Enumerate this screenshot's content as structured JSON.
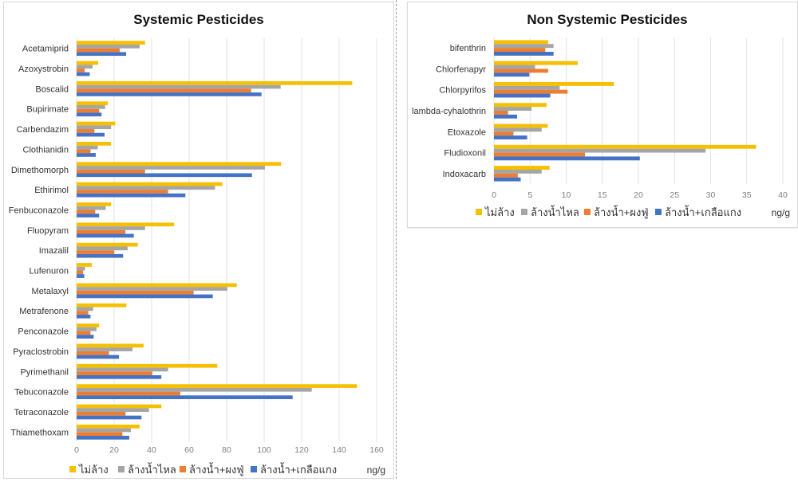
{
  "legend": {
    "series_labels": [
      "ไม่ล้าง",
      "ล้างน้ำไหล",
      "ล้างน้ำ+ผงฟู่",
      "ล้างน้ำ+เกลือแกง"
    ],
    "unit": "ng/g"
  },
  "colors": {
    "series": [
      "#F5C000",
      "#A5A5A5",
      "#ED7D31",
      "#4472C4"
    ],
    "grid": "#e3e3e3"
  },
  "chart_data": [
    {
      "type": "bar",
      "orientation": "horizontal",
      "title": "Systemic Pesticides",
      "xlabel": "ng/g",
      "ylabel": "",
      "xlim": [
        0,
        160
      ],
      "xticks": [
        0,
        20,
        40,
        60,
        80,
        100,
        120,
        140,
        160
      ],
      "grid": true,
      "legend_position": "bottom",
      "categories": [
        "Acetamiprid",
        "Azoxystrobin",
        "Boscalid",
        "Bupirimate",
        "Carbendazim",
        "Clothianidin",
        "Dimethomorph",
        "Ethirimol",
        "Fenbuconazole",
        "Fluopyram",
        "Imazalil",
        "Lufenuron",
        "Metalaxyl",
        "Metrafenone",
        "Penconazole",
        "Pyraclostrobin",
        "Pyrimethanil",
        "Tebuconazole",
        "Tetraconazole",
        "Thiamethoxam"
      ],
      "series": [
        {
          "name": "ไม่ล้าง",
          "values": [
            36.5,
            11.5,
            147,
            16.6,
            20.6,
            18.3,
            109,
            77.7,
            18.4,
            52,
            32.6,
            8.1,
            85.4,
            26.5,
            12,
            35.7,
            75,
            149.5,
            45.2,
            33.6
          ]
        },
        {
          "name": "ล้างน้ำไหล",
          "values": [
            33.6,
            8.5,
            108.8,
            15.2,
            18.4,
            11.3,
            100.4,
            73.8,
            15.5,
            36.5,
            27.2,
            4.5,
            80.4,
            8.8,
            10.6,
            29.8,
            48.8,
            125.4,
            38.6,
            28.9
          ]
        },
        {
          "name": "ล้างน้ำ+ผงฟู่",
          "values": [
            23,
            4.3,
            93,
            12,
            9.5,
            7.4,
            36.5,
            48.8,
            9.9,
            26,
            20.1,
            3.4,
            62.4,
            6.2,
            7.4,
            17.3,
            40.4,
            55.3,
            26.1,
            24.4
          ]
        },
        {
          "name": "ล้างน้ำ+เกลือแกง",
          "values": [
            26.4,
            7,
            98.6,
            13.3,
            14.9,
            10.2,
            93.5,
            58,
            12,
            30.5,
            24.8,
            4.1,
            72.6,
            7.4,
            9.1,
            22.6,
            45.2,
            115.2,
            34.6,
            28.1
          ]
        }
      ]
    },
    {
      "type": "bar",
      "orientation": "horizontal",
      "title": "Non Systemic Pesticides",
      "xlabel": "ng/g",
      "ylabel": "",
      "xlim": [
        0,
        40
      ],
      "xticks": [
        0,
        5,
        10,
        15,
        20,
        25,
        30,
        35,
        40
      ],
      "grid": true,
      "legend_position": "bottom",
      "categories": [
        "bifenthrin",
        "Chlorfenapyr",
        "Chlorpyrifos",
        "lambda-cyhalothrin",
        "Etoxazole",
        "Fludioxonil",
        "Indoxacarb"
      ],
      "series": [
        {
          "name": "ไม่ล้าง",
          "values": [
            7.5,
            11.6,
            16.6,
            7.3,
            7.45,
            36.3,
            7.7
          ]
        },
        {
          "name": "ล้างน้ำไหล",
          "values": [
            8.25,
            5.7,
            9.1,
            5.2,
            6.6,
            29.3,
            6.6
          ]
        },
        {
          "name": "ล้างน้ำ+ผงฟู่",
          "values": [
            7.1,
            7.5,
            10.2,
            1.95,
            2.7,
            12.6,
            3.3
          ]
        },
        {
          "name": "ล้างน้ำ+เกลือแกง",
          "values": [
            8.25,
            4.9,
            7.8,
            3.2,
            4.6,
            20.2,
            3.7
          ]
        }
      ]
    }
  ]
}
